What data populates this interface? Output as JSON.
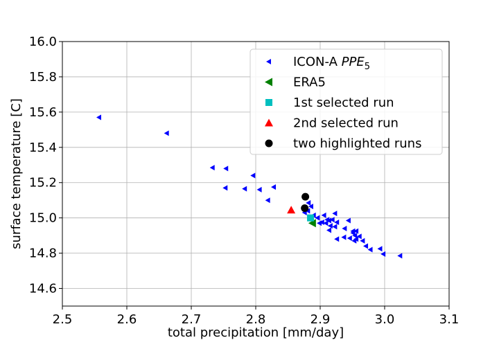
{
  "chart_data": {
    "type": "scatter",
    "title": "",
    "xlabel": "total precipitation [mm/day]",
    "ylabel": "surface temperature [C]",
    "xlim": [
      2.5,
      3.1
    ],
    "ylim": [
      14.5,
      16.0
    ],
    "xticks": [
      "2.5",
      "2.6",
      "2.7",
      "2.8",
      "2.9",
      "3.0",
      "3.1"
    ],
    "yticks": [
      "14.6",
      "14.8",
      "15.0",
      "15.2",
      "15.4",
      "15.6",
      "15.8",
      "16.0"
    ],
    "grid": true,
    "legend_position": "top-right",
    "series": [
      {
        "name_main": "ICON-A ",
        "name_italic": "PPE",
        "name_sub": "5",
        "marker": "triangle-left-small",
        "color": "#0000ff",
        "points": [
          [
            2.557,
            15.57
          ],
          [
            2.662,
            15.48
          ],
          [
            2.733,
            15.285
          ],
          [
            2.754,
            15.28
          ],
          [
            2.796,
            15.24
          ],
          [
            2.753,
            15.17
          ],
          [
            2.783,
            15.165
          ],
          [
            2.806,
            15.16
          ],
          [
            2.828,
            15.175
          ],
          [
            2.819,
            15.1
          ],
          [
            2.882,
            15.085
          ],
          [
            2.886,
            15.065
          ],
          [
            2.881,
            15.04
          ],
          [
            2.876,
            15.03
          ],
          [
            2.89,
            15.015
          ],
          [
            2.896,
            15.0
          ],
          [
            2.906,
            15.015
          ],
          [
            2.911,
            14.99
          ],
          [
            2.899,
            14.97
          ],
          [
            2.903,
            14.975
          ],
          [
            2.909,
            14.97
          ],
          [
            2.914,
            14.985
          ],
          [
            2.919,
            14.99
          ],
          [
            2.923,
            15.025
          ],
          [
            2.926,
            14.975
          ],
          [
            2.916,
            14.955
          ],
          [
            2.923,
            14.95
          ],
          [
            2.914,
            14.93
          ],
          [
            2.938,
            14.94
          ],
          [
            2.944,
            14.985
          ],
          [
            2.951,
            14.925
          ],
          [
            2.956,
            14.925
          ],
          [
            2.951,
            14.915
          ],
          [
            2.954,
            14.9
          ],
          [
            2.946,
            14.885
          ],
          [
            2.956,
            14.88
          ],
          [
            2.953,
            14.87
          ],
          [
            2.961,
            14.895
          ],
          [
            2.966,
            14.87
          ],
          [
            2.971,
            14.84
          ],
          [
            2.978,
            14.82
          ],
          [
            2.926,
            14.88
          ],
          [
            2.937,
            14.89
          ],
          [
            2.993,
            14.825
          ],
          [
            2.998,
            14.795
          ],
          [
            3.024,
            14.785
          ]
        ]
      },
      {
        "name": "ERA5",
        "marker": "triangle-left",
        "color": "#008000",
        "points": [
          [
            2.888,
            14.97
          ]
        ]
      },
      {
        "name": "1st selected run",
        "marker": "square",
        "color": "#00bfbf",
        "points": [
          [
            2.885,
            15.0
          ]
        ]
      },
      {
        "name": "2nd selected run",
        "marker": "triangle-up",
        "color": "#ff0000",
        "points": [
          [
            2.855,
            15.045
          ]
        ]
      },
      {
        "name": "two highlighted runs",
        "marker": "circle",
        "color": "#000000",
        "points": [
          [
            2.877,
            15.12
          ],
          [
            2.876,
            15.055
          ]
        ]
      }
    ]
  }
}
